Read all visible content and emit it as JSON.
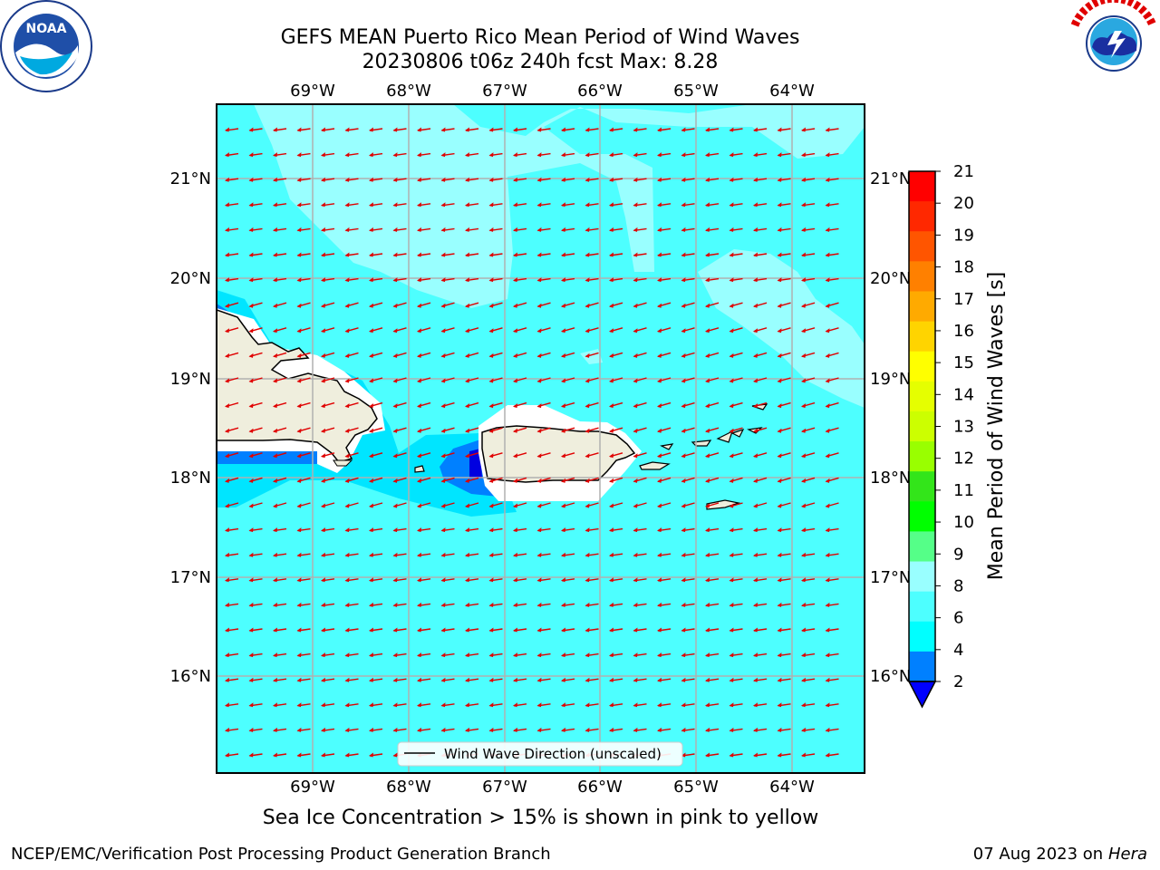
{
  "header": {
    "title_line1": "GEFS MEAN Puerto Rico Mean Period of Wind Waves",
    "title_line2": "20230806 t06z 240h fcst   Max: 8.28"
  },
  "logos": {
    "left": {
      "name": "NOAA",
      "ring_text": "NATIONAL OCEANIC AND ATMOSPHERIC ADMINISTRATION · U.S. DEPARTMENT OF COMMERCE"
    },
    "right": {
      "name": "NATIONAL WEATHER SERVICE",
      "ring_text": "NATIONAL WEATHER SERVICE"
    }
  },
  "map": {
    "lon_labels": [
      "69°W",
      "68°W",
      "67°W",
      "66°W",
      "65°W",
      "64°W"
    ],
    "lat_labels": [
      "21°N",
      "20°N",
      "19°N",
      "18°N",
      "17°N",
      "16°N"
    ],
    "legend_label": "Wind Wave Direction (unscaled)",
    "colors": {
      "ocean": "#4dffff",
      "light": "#99ffff",
      "mid": "#00e5ff",
      "blue": "#0080ff",
      "deep": "#0000e0",
      "land": "#efeedd",
      "arrow": "#e00000"
    }
  },
  "colorbar": {
    "title": "Mean Period of Wind Waves [s]",
    "ticks": [
      "21",
      "20",
      "19",
      "18",
      "17",
      "16",
      "15",
      "14",
      "13",
      "12",
      "11",
      "10",
      "9",
      "8",
      "6",
      "4",
      "2"
    ],
    "colors": [
      "#ff0000",
      "#ff2800",
      "#ff5500",
      "#ff8000",
      "#ffaa00",
      "#ffd400",
      "#ffff00",
      "#e5ff00",
      "#ccff00",
      "#99ff00",
      "#33e51a",
      "#00ff00",
      "#55ff88",
      "#99ffff",
      "#4dffff",
      "#00ffff",
      "#0080ff"
    ],
    "under_color": "#0000ff"
  },
  "caption": "Sea Ice Concentration > 15% is shown in pink to yellow",
  "footer": {
    "left": "NCEP/EMC/Verification Post Processing Product Generation Branch",
    "date": "07 Aug 2023 on",
    "host": "Hera"
  }
}
